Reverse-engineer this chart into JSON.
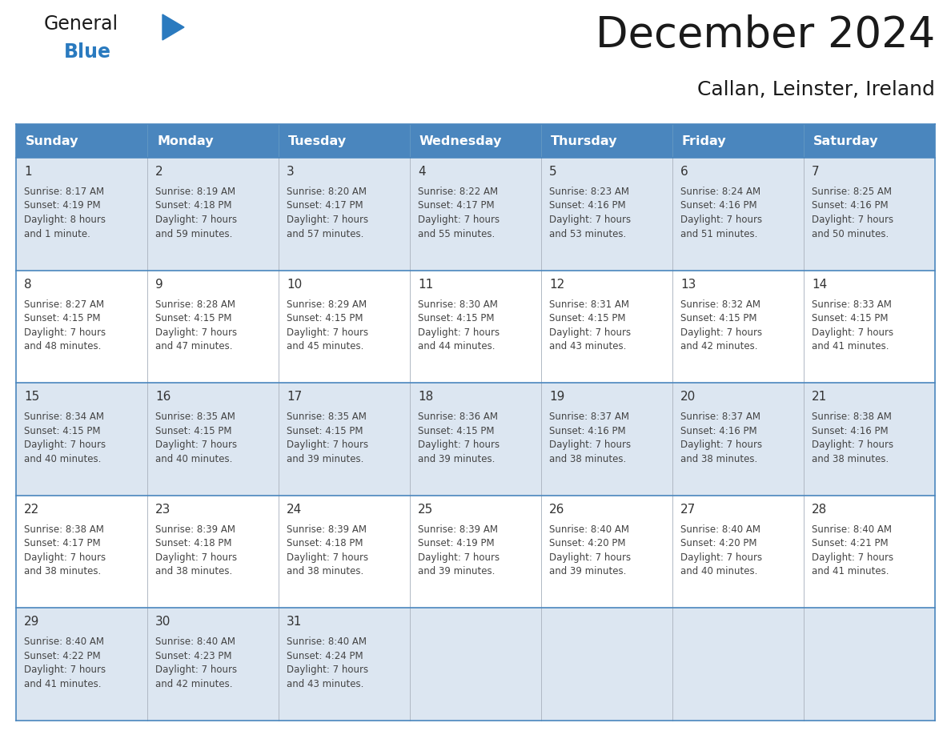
{
  "title": "December 2024",
  "subtitle": "Callan, Leinster, Ireland",
  "days_of_week": [
    "Sunday",
    "Monday",
    "Tuesday",
    "Wednesday",
    "Thursday",
    "Friday",
    "Saturday"
  ],
  "header_bg": "#4a86be",
  "header_text": "#ffffff",
  "row_bg_odd": "#dce6f1",
  "row_bg_even": "#ffffff",
  "border_color": "#4a86be",
  "cell_border_color": "#aaaaaa",
  "text_color": "#444444",
  "day_num_color": "#333333",
  "calendar_data": [
    [
      {
        "day": "1",
        "sunrise": "8:17 AM",
        "sunset": "4:19 PM",
        "daylight": "8 hours\nand 1 minute."
      },
      {
        "day": "2",
        "sunrise": "8:19 AM",
        "sunset": "4:18 PM",
        "daylight": "7 hours\nand 59 minutes."
      },
      {
        "day": "3",
        "sunrise": "8:20 AM",
        "sunset": "4:17 PM",
        "daylight": "7 hours\nand 57 minutes."
      },
      {
        "day": "4",
        "sunrise": "8:22 AM",
        "sunset": "4:17 PM",
        "daylight": "7 hours\nand 55 minutes."
      },
      {
        "day": "5",
        "sunrise": "8:23 AM",
        "sunset": "4:16 PM",
        "daylight": "7 hours\nand 53 minutes."
      },
      {
        "day": "6",
        "sunrise": "8:24 AM",
        "sunset": "4:16 PM",
        "daylight": "7 hours\nand 51 minutes."
      },
      {
        "day": "7",
        "sunrise": "8:25 AM",
        "sunset": "4:16 PM",
        "daylight": "7 hours\nand 50 minutes."
      }
    ],
    [
      {
        "day": "8",
        "sunrise": "8:27 AM",
        "sunset": "4:15 PM",
        "daylight": "7 hours\nand 48 minutes."
      },
      {
        "day": "9",
        "sunrise": "8:28 AM",
        "sunset": "4:15 PM",
        "daylight": "7 hours\nand 47 minutes."
      },
      {
        "day": "10",
        "sunrise": "8:29 AM",
        "sunset": "4:15 PM",
        "daylight": "7 hours\nand 45 minutes."
      },
      {
        "day": "11",
        "sunrise": "8:30 AM",
        "sunset": "4:15 PM",
        "daylight": "7 hours\nand 44 minutes."
      },
      {
        "day": "12",
        "sunrise": "8:31 AM",
        "sunset": "4:15 PM",
        "daylight": "7 hours\nand 43 minutes."
      },
      {
        "day": "13",
        "sunrise": "8:32 AM",
        "sunset": "4:15 PM",
        "daylight": "7 hours\nand 42 minutes."
      },
      {
        "day": "14",
        "sunrise": "8:33 AM",
        "sunset": "4:15 PM",
        "daylight": "7 hours\nand 41 minutes."
      }
    ],
    [
      {
        "day": "15",
        "sunrise": "8:34 AM",
        "sunset": "4:15 PM",
        "daylight": "7 hours\nand 40 minutes."
      },
      {
        "day": "16",
        "sunrise": "8:35 AM",
        "sunset": "4:15 PM",
        "daylight": "7 hours\nand 40 minutes."
      },
      {
        "day": "17",
        "sunrise": "8:35 AM",
        "sunset": "4:15 PM",
        "daylight": "7 hours\nand 39 minutes."
      },
      {
        "day": "18",
        "sunrise": "8:36 AM",
        "sunset": "4:15 PM",
        "daylight": "7 hours\nand 39 minutes."
      },
      {
        "day": "19",
        "sunrise": "8:37 AM",
        "sunset": "4:16 PM",
        "daylight": "7 hours\nand 38 minutes."
      },
      {
        "day": "20",
        "sunrise": "8:37 AM",
        "sunset": "4:16 PM",
        "daylight": "7 hours\nand 38 minutes."
      },
      {
        "day": "21",
        "sunrise": "8:38 AM",
        "sunset": "4:16 PM",
        "daylight": "7 hours\nand 38 minutes."
      }
    ],
    [
      {
        "day": "22",
        "sunrise": "8:38 AM",
        "sunset": "4:17 PM",
        "daylight": "7 hours\nand 38 minutes."
      },
      {
        "day": "23",
        "sunrise": "8:39 AM",
        "sunset": "4:18 PM",
        "daylight": "7 hours\nand 38 minutes."
      },
      {
        "day": "24",
        "sunrise": "8:39 AM",
        "sunset": "4:18 PM",
        "daylight": "7 hours\nand 38 minutes."
      },
      {
        "day": "25",
        "sunrise": "8:39 AM",
        "sunset": "4:19 PM",
        "daylight": "7 hours\nand 39 minutes."
      },
      {
        "day": "26",
        "sunrise": "8:40 AM",
        "sunset": "4:20 PM",
        "daylight": "7 hours\nand 39 minutes."
      },
      {
        "day": "27",
        "sunrise": "8:40 AM",
        "sunset": "4:20 PM",
        "daylight": "7 hours\nand 40 minutes."
      },
      {
        "day": "28",
        "sunrise": "8:40 AM",
        "sunset": "4:21 PM",
        "daylight": "7 hours\nand 41 minutes."
      }
    ],
    [
      {
        "day": "29",
        "sunrise": "8:40 AM",
        "sunset": "4:22 PM",
        "daylight": "7 hours\nand 41 minutes."
      },
      {
        "day": "30",
        "sunrise": "8:40 AM",
        "sunset": "4:23 PM",
        "daylight": "7 hours\nand 42 minutes."
      },
      {
        "day": "31",
        "sunrise": "8:40 AM",
        "sunset": "4:24 PM",
        "daylight": "7 hours\nand 43 minutes."
      },
      null,
      null,
      null,
      null
    ]
  ],
  "logo_color_general": "#1a1a1a",
  "logo_color_blue": "#2a7abf",
  "logo_triangle_color": "#2a7abf",
  "title_fontsize": 38,
  "subtitle_fontsize": 18,
  "header_fontsize": 11.5,
  "daynum_fontsize": 11,
  "cell_fontsize": 8.5
}
